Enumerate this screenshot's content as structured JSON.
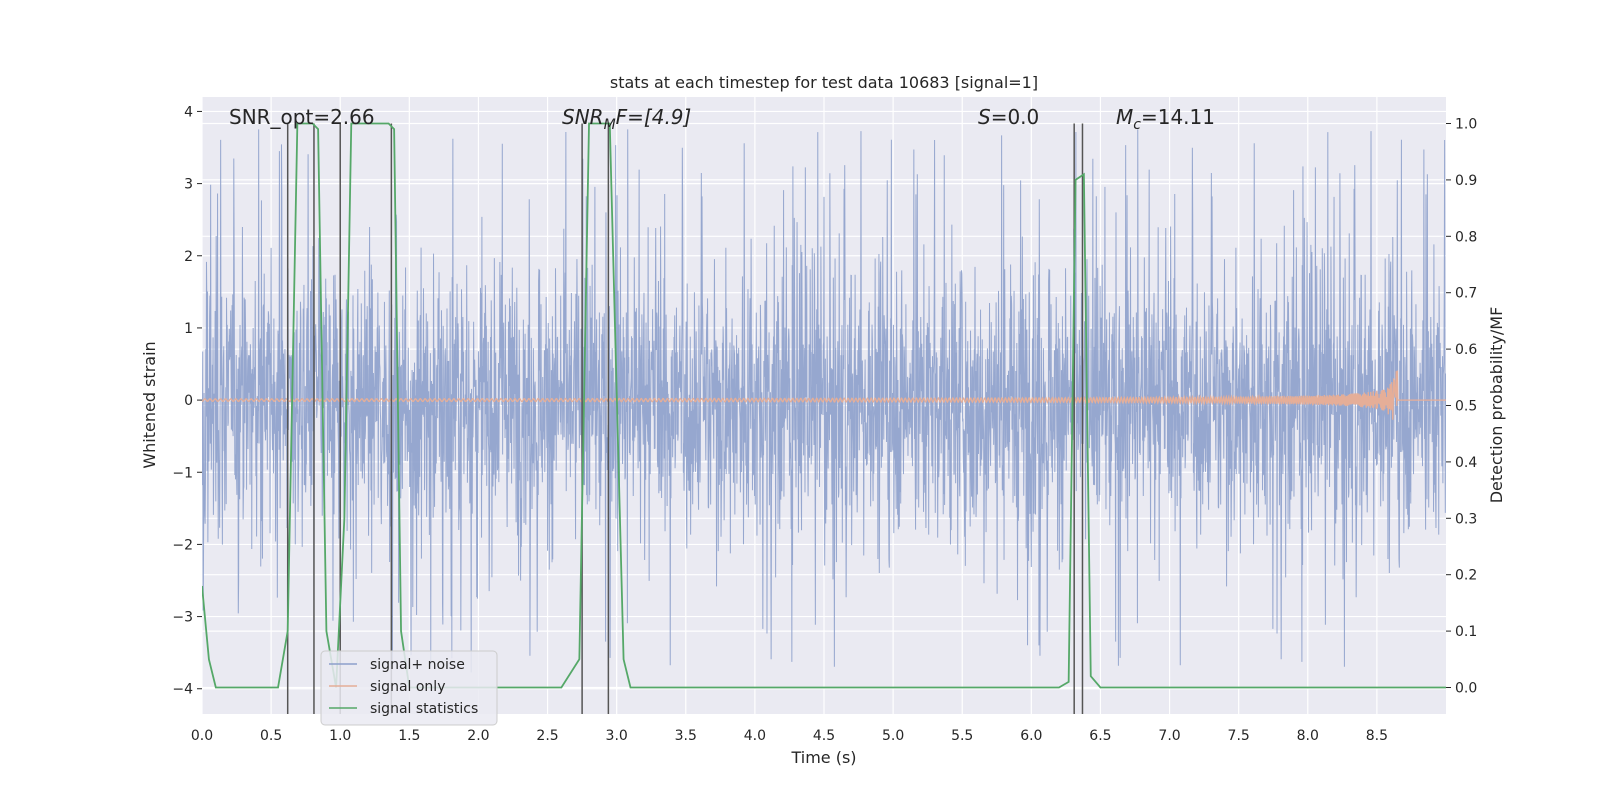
{
  "chart_data": {
    "type": "line",
    "title": "stats at each timestep for test data 10683 [signal=1]",
    "xlabel": "Time (s)",
    "ylabel": "Whitened strain",
    "ylabel_right": "Detection probability/MF",
    "xlim": [
      0.0,
      9.0
    ],
    "ylim": [
      -4.35,
      4.2
    ],
    "ylim_right": [
      -0.047,
      1.047
    ],
    "x_ticks": [
      "0.0",
      "0.5",
      "1.0",
      "1.5",
      "2.0",
      "2.5",
      "3.0",
      "3.5",
      "4.0",
      "4.5",
      "5.0",
      "5.5",
      "6.0",
      "6.5",
      "7.0",
      "7.5",
      "8.0",
      "8.5"
    ],
    "y_ticks": [
      "4",
      "3",
      "2",
      "1",
      "0",
      "−1",
      "−2",
      "−3",
      "−4"
    ],
    "y_ticks_right": [
      "1.0",
      "0.9",
      "0.8",
      "0.7",
      "0.6",
      "0.5",
      "0.4",
      "0.3",
      "0.2",
      "0.1",
      "0.0"
    ],
    "grid": true,
    "legend_position": "lower-left",
    "annotations": {
      "snr_opt": "SNR_opt=2.66",
      "snr_mf_main": "SNR",
      "snr_mf_sub": "M",
      "snr_mf_rest": "F=[4.9]",
      "s_italic": "S",
      "s_rest": "=0.0",
      "mc_main": "M",
      "mc_sub": "c",
      "mc_rest": "=14.11"
    },
    "series": [
      {
        "name": "signal+ noise",
        "color": "#8da0cb",
        "kind": "noise",
        "x_range": [
          0.0,
          9.0
        ],
        "envelope_typical": 1.5,
        "envelope_peak": 3.8
      },
      {
        "name": "signal only",
        "color": "#e5ae98",
        "kind": "chirp",
        "x_range": [
          0.0,
          8.68
        ],
        "peak_time": 8.65,
        "peak_amplitude": 0.42
      },
      {
        "name": "signal statistics",
        "color": "#55a868",
        "kind": "line",
        "axis": "right",
        "x": [
          0.0,
          0.05,
          0.1,
          0.55,
          0.62,
          0.69,
          0.8,
          0.84,
          0.9,
          0.97,
          1.03,
          1.08,
          1.35,
          1.39,
          1.44,
          1.5,
          2.6,
          2.73,
          2.8,
          2.95,
          3.05,
          3.1,
          6.2,
          6.27,
          6.32,
          6.38,
          6.43,
          6.5,
          9.0
        ],
        "y": [
          0.18,
          0.05,
          0.0,
          0.0,
          0.1,
          1.0,
          1.0,
          0.99,
          0.1,
          0.0,
          0.3,
          1.0,
          1.0,
          0.99,
          0.1,
          0.0,
          0.0,
          0.05,
          1.0,
          1.0,
          0.05,
          0.0,
          0.0,
          0.01,
          0.9,
          0.91,
          0.02,
          0.0,
          0.0
        ]
      }
    ],
    "detection_markers": {
      "color": "#555555",
      "x": [
        0.62,
        0.81,
        1.0,
        1.37,
        2.75,
        2.94,
        6.31,
        6.37
      ],
      "y_top": 1.0
    }
  }
}
